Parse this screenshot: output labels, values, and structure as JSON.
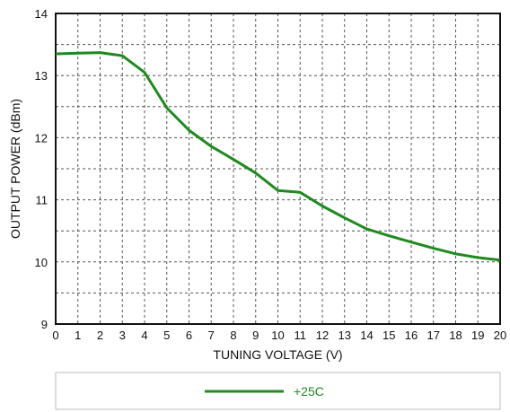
{
  "chart_data": {
    "type": "line",
    "title": "",
    "xlabel": "TUNING VOLTAGE (V)",
    "ylabel": "OUTPUT POWER (dBm)",
    "xlim": [
      0,
      20
    ],
    "ylim": [
      9,
      14
    ],
    "x_ticks": [
      "0",
      "1",
      "2",
      "3",
      "4",
      "5",
      "6",
      "7",
      "8",
      "9",
      "10",
      "11",
      "12",
      "13",
      "14",
      "15",
      "16",
      "17",
      "18",
      "19",
      "20"
    ],
    "y_ticks": [
      "9",
      "10",
      "11",
      "12",
      "13",
      "14"
    ],
    "grid": true,
    "legend_position": "bottom",
    "series": [
      {
        "name": "+25C",
        "color": "#1f8a1f",
        "x": [
          0,
          1,
          2,
          3,
          4,
          5,
          6,
          7,
          8,
          9,
          10,
          11,
          12,
          13,
          14,
          15,
          16,
          17,
          18,
          19,
          20
        ],
        "y": [
          13.35,
          13.36,
          13.37,
          13.32,
          13.05,
          12.48,
          12.12,
          11.86,
          11.65,
          11.43,
          11.15,
          11.12,
          10.9,
          10.71,
          10.53,
          10.42,
          10.32,
          10.22,
          10.13,
          10.07,
          10.03
        ]
      }
    ]
  }
}
